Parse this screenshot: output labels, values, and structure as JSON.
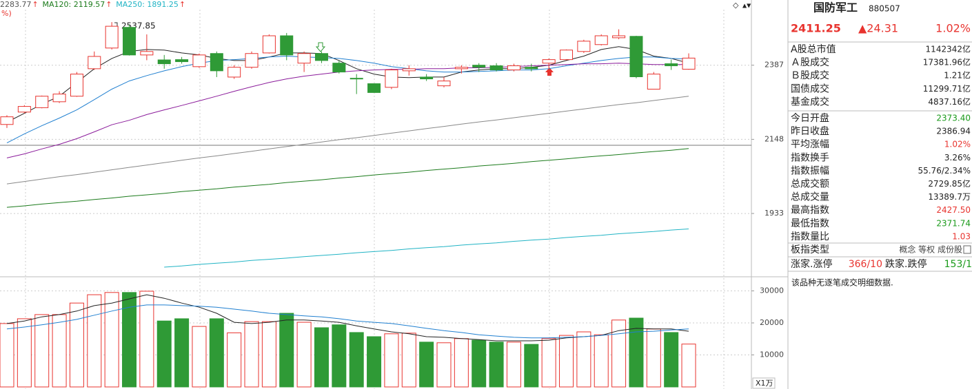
{
  "chart_data": [
    {
      "type": "candlestick",
      "ma_labels": [
        {
          "text": "2283.77",
          "arrow": "↑",
          "color": "#555555"
        },
        {
          "text": "MA120: 2119.57",
          "arrow": "↑",
          "color": "#1a7a1a"
        },
        {
          "text": "MA250: 1891.25",
          "arrow": "↑",
          "color": "#1fb3c4"
        }
      ],
      "subtitle": "%)",
      "annotation": "2537.85",
      "open": [
        2194,
        2233,
        2247,
        2266,
        2284,
        2375,
        2446,
        2519,
        2422,
        2405,
        2406,
        2382,
        2427,
        2347,
        2380,
        2429,
        2489,
        2394,
        2427,
        2394,
        2343,
        2325,
        2313,
        2368,
        2347,
        2318,
        2375,
        2387,
        2385,
        2371,
        2380,
        2394,
        2406,
        2434,
        2458,
        2482,
        2487,
        2307,
        2392,
        2373.4
      ],
      "close": [
        2218,
        2251,
        2284,
        2291,
        2357,
        2417,
        2523,
        2422,
        2434,
        2392,
        2399,
        2422,
        2368,
        2380,
        2427,
        2489,
        2422,
        2427,
        2403,
        2364,
        2341,
        2296,
        2371,
        2375,
        2341,
        2334,
        2380,
        2380,
        2371,
        2385,
        2375,
        2406,
        2439,
        2470,
        2489,
        2489,
        2348,
        2357,
        2385,
        2411.25
      ],
      "high": [
        2223,
        2255,
        2286,
        2300,
        2364,
        2434,
        2537.85,
        2530,
        2494,
        2422,
        2415,
        2427,
        2434,
        2387,
        2434,
        2494,
        2499,
        2434,
        2434,
        2403,
        2357,
        2325,
        2375,
        2387,
        2357,
        2347,
        2387,
        2394,
        2394,
        2392,
        2392,
        2410,
        2441,
        2475,
        2494,
        2512,
        2489,
        2364,
        2406,
        2427.5
      ],
      "low": [
        2183,
        2229,
        2245,
        2262,
        2282,
        2371,
        2441,
        2420,
        2404,
        2375,
        2392,
        2378,
        2347,
        2341,
        2375,
        2427,
        2404,
        2364,
        2394,
        2359,
        2291,
        2296,
        2307,
        2352,
        2334,
        2313,
        2359,
        2364,
        2366,
        2366,
        2366,
        2375,
        2404,
        2429,
        2455,
        2477,
        2343,
        2307,
        2371,
        2371.74
      ],
      "colors": {
        "up": "#e8332e",
        "down": "#2f9a36"
      },
      "series": [
        {
          "color": "#222222",
          "values": [
            2201,
            2229,
            2258,
            2284,
            2329,
            2375,
            2410,
            2434,
            2441,
            2439,
            2429,
            2422,
            2410,
            2403,
            2403,
            2415,
            2429,
            2429,
            2427,
            2403,
            2375,
            2357,
            2347,
            2345,
            2347,
            2347,
            2364,
            2371,
            2375,
            2375,
            2380,
            2387,
            2403,
            2418,
            2441,
            2451,
            2441,
            2418,
            2410,
            2394
          ]
        },
        {
          "color": "#1f7fd0",
          "values": [
            2137,
            2165,
            2190,
            2214,
            2240,
            2273,
            2307,
            2334,
            2352,
            2368,
            2382,
            2394,
            2403,
            2406,
            2410,
            2415,
            2418,
            2415,
            2413,
            2410,
            2403,
            2394,
            2382,
            2375,
            2368,
            2364,
            2364,
            2366,
            2368,
            2371,
            2371,
            2375,
            2385,
            2394,
            2403,
            2410,
            2415,
            2415,
            2410,
            2408
          ]
        },
        {
          "color": "#8a1a9a",
          "values": [
            2092,
            2104,
            2119,
            2133,
            2150,
            2171,
            2193,
            2207,
            2225,
            2240,
            2254,
            2269,
            2284,
            2300,
            2315,
            2329,
            2341,
            2350,
            2357,
            2364,
            2368,
            2371,
            2373,
            2373,
            2375,
            2375,
            2378,
            2378,
            2380,
            2382,
            2385,
            2387,
            2389,
            2392,
            2392,
            2394,
            2392,
            2389,
            2389,
            2389
          ]
        },
        {
          "color": "#888888",
          "values": [
            2016,
            2023,
            2030,
            2037,
            2043,
            2050,
            2057,
            2064,
            2071,
            2078,
            2085,
            2092,
            2098,
            2105,
            2112,
            2119,
            2126,
            2133,
            2140,
            2147,
            2153,
            2160,
            2167,
            2174,
            2181,
            2188,
            2195,
            2202,
            2208,
            2215,
            2222,
            2229,
            2236,
            2243,
            2250,
            2257,
            2263,
            2270,
            2277,
            2284
          ]
        },
        {
          "color": "#1a7a1a",
          "values": [
            1950,
            1954,
            1959,
            1963,
            1967,
            1972,
            1976,
            1981,
            1985,
            1989,
            1994,
            1998,
            2002,
            2007,
            2011,
            2015,
            2020,
            2024,
            2028,
            2033,
            2037,
            2042,
            2046,
            2050,
            2055,
            2059,
            2063,
            2068,
            2072,
            2076,
            2081,
            2085,
            2089,
            2094,
            2098,
            2102,
            2107,
            2111,
            2115,
            2120
          ]
        },
        {
          "color": "#1fb3c4",
          "values": [
            null,
            null,
            null,
            null,
            null,
            null,
            null,
            null,
            null,
            1791,
            1794,
            1798,
            1801,
            1804,
            1808,
            1811,
            1814,
            1818,
            1821,
            1824,
            1828,
            1831,
            1834,
            1838,
            1841,
            1844,
            1848,
            1851,
            1854,
            1858,
            1861,
            1864,
            1868,
            1871,
            1874,
            1878,
            1881,
            1884,
            1888,
            1891
          ]
        }
      ],
      "ylim": [
        1770,
        2619
      ],
      "yticks": [
        1933,
        2148,
        2387
      ],
      "log_scale": true,
      "grid": true
    },
    {
      "type": "bar",
      "values": [
        19800,
        21300,
        22600,
        22600,
        26200,
        28800,
        29500,
        29500,
        29900,
        20600,
        21300,
        18900,
        21300,
        16900,
        20400,
        20400,
        23000,
        20200,
        18500,
        19400,
        17000,
        15700,
        16600,
        16800,
        14000,
        13800,
        15100,
        14600,
        14000,
        14000,
        13300,
        15100,
        16100,
        17200,
        16300,
        20900,
        21500,
        18100,
        17000,
        13389.7
      ],
      "series": [
        {
          "color": "#222222",
          "values": [
            19800,
            20600,
            21900,
            22600,
            23700,
            25400,
            26200,
            27500,
            28800,
            27700,
            26200,
            24900,
            23000,
            20200,
            19800,
            20200,
            20900,
            20900,
            20600,
            20200,
            19100,
            18100,
            17200,
            16600,
            15700,
            15500,
            15100,
            14800,
            14400,
            14400,
            14400,
            14600,
            15300,
            15700,
            16100,
            17600,
            18300,
            18100,
            18100,
            17400
          ]
        },
        {
          "color": "#1f7fd0",
          "values": [
            18100,
            18700,
            19400,
            20200,
            21100,
            22400,
            23700,
            24900,
            25600,
            25600,
            25400,
            25200,
            24900,
            24300,
            23700,
            23000,
            22600,
            22200,
            21900,
            21300,
            20600,
            20200,
            19800,
            19100,
            18300,
            17600,
            17000,
            16300,
            15900,
            15500,
            15300,
            15300,
            15500,
            15700,
            16100,
            16600,
            17200,
            17400,
            17800,
            18100
          ]
        }
      ],
      "ylim": [
        0,
        33760
      ],
      "yticks": [
        10000,
        20000,
        30000
      ],
      "unit_label": "X1万",
      "grid": true
    }
  ],
  "panel": {
    "name": "国防军工",
    "code": "880507",
    "price": "2411.25",
    "change": "▲24.31",
    "change_pct": "1.02%",
    "market_rows": [
      {
        "label": "A股总市值",
        "value": "1142342亿"
      },
      {
        "label": "Ａ股成交",
        "value": "17381.96亿"
      },
      {
        "label": "Ｂ股成交",
        "value": "1.21亿"
      },
      {
        "label": "国债成交",
        "value": "11299.71亿"
      },
      {
        "label": "基金成交",
        "value": "4837.16亿"
      }
    ],
    "index_rows": [
      {
        "label": "今日开盘",
        "value": "2373.40",
        "color": "#1a9a1a"
      },
      {
        "label": "昨日收盘",
        "value": "2386.94"
      },
      {
        "label": "平均涨幅",
        "value": "1.02%",
        "color": "#e8332e"
      },
      {
        "label": "指数换手",
        "value": "3.26%"
      },
      {
        "label": "指数振幅",
        "value": "55.76/2.34%"
      },
      {
        "label": "总成交额",
        "value": "2729.85亿"
      },
      {
        "label": "总成交量",
        "value": "13389.7万"
      },
      {
        "label": "最高指数",
        "value": "2427.50",
        "color": "#e8332e"
      },
      {
        "label": "最低指数",
        "value": "2371.74",
        "color": "#1a9a1a"
      },
      {
        "label": "指数量比",
        "value": "1.03",
        "color": "#e8332e"
      }
    ],
    "type_label": "板指类型",
    "type_tags": "概念 等权 成份股",
    "up_label": "涨家.涨停",
    "up_value": "366/10",
    "down_label": "跌家.跌停",
    "down_value": "153/1",
    "note": "该品种无逐笔成交明细数据."
  }
}
